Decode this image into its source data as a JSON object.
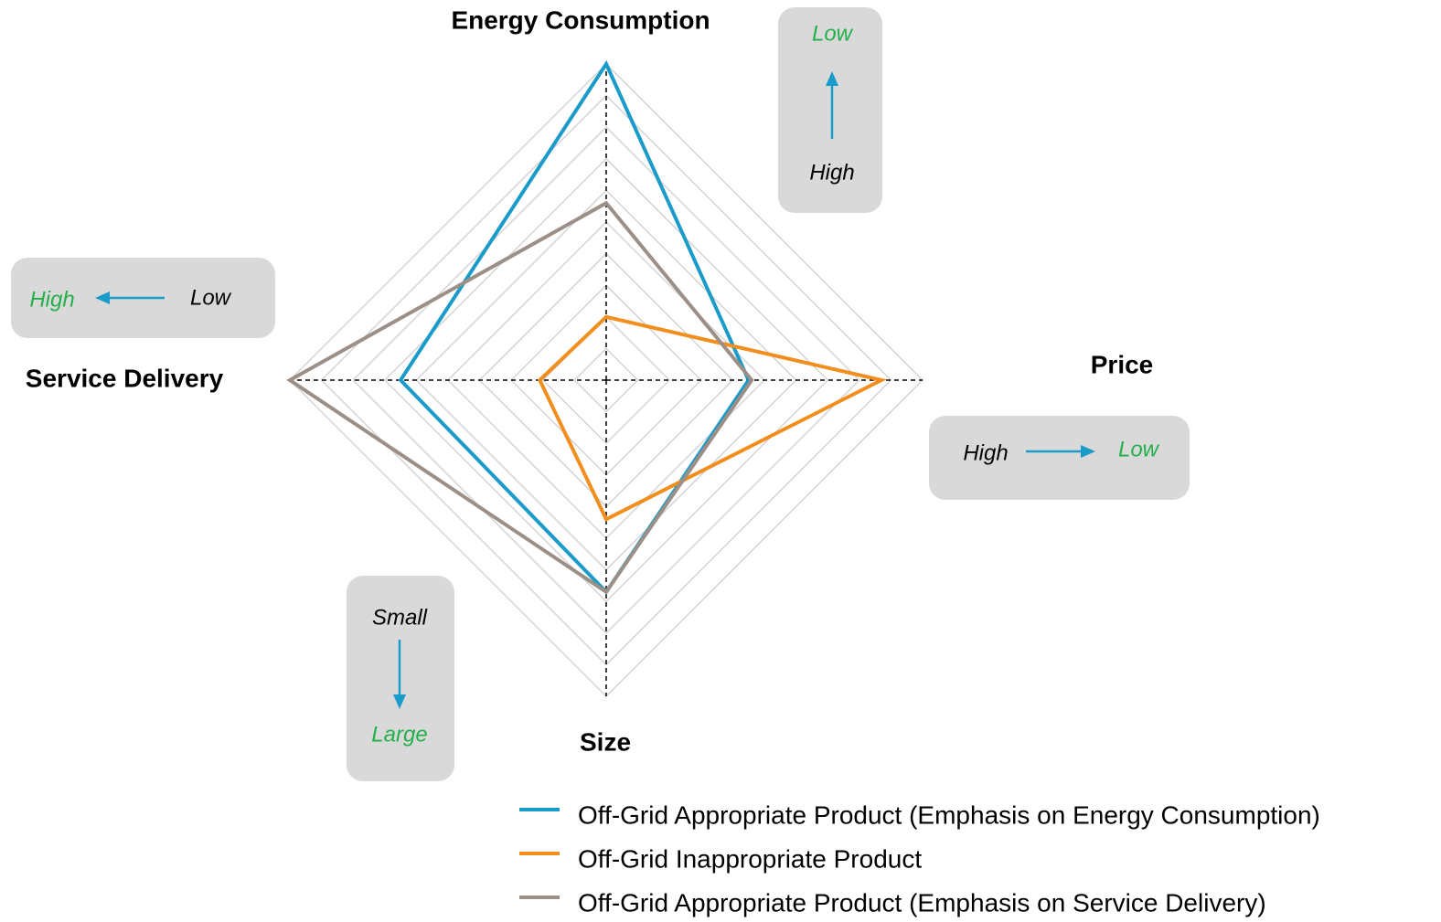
{
  "chart_data": {
    "type": "radar",
    "categories": [
      "Energy Consumption",
      "Price",
      "Size",
      "Service Delivery"
    ],
    "rlim": [
      0,
      10
    ],
    "rticks": [
      1,
      2,
      3,
      4,
      5,
      6,
      7,
      8,
      9,
      10
    ],
    "grid": true,
    "series": [
      {
        "name": "Off-Grid Appropriate Product (Emphasis on Energy Consumption)",
        "color": "#1a9bc9",
        "values": [
          10,
          4.5,
          6.7,
          6.5
        ]
      },
      {
        "name": "Off-Grid Inappropriate Product",
        "color": "#f28e1e",
        "values": [
          2,
          8.7,
          4.4,
          2.1
        ]
      },
      {
        "name": "Off-Grid Appropriate Product (Emphasis on Service Delivery)",
        "color": "#9b8f87",
        "values": [
          5.6,
          4.6,
          6.7,
          10
        ]
      }
    ],
    "annotations": [
      {
        "from": "High",
        "to": "Low"
      },
      {
        "from": "High",
        "to": "Low"
      },
      {
        "from": "Small",
        "to": "Large"
      },
      {
        "from": "Low",
        "to": "High"
      }
    ],
    "annotation_color": "#22b04b",
    "arrow_color": "#1a9bc9"
  }
}
